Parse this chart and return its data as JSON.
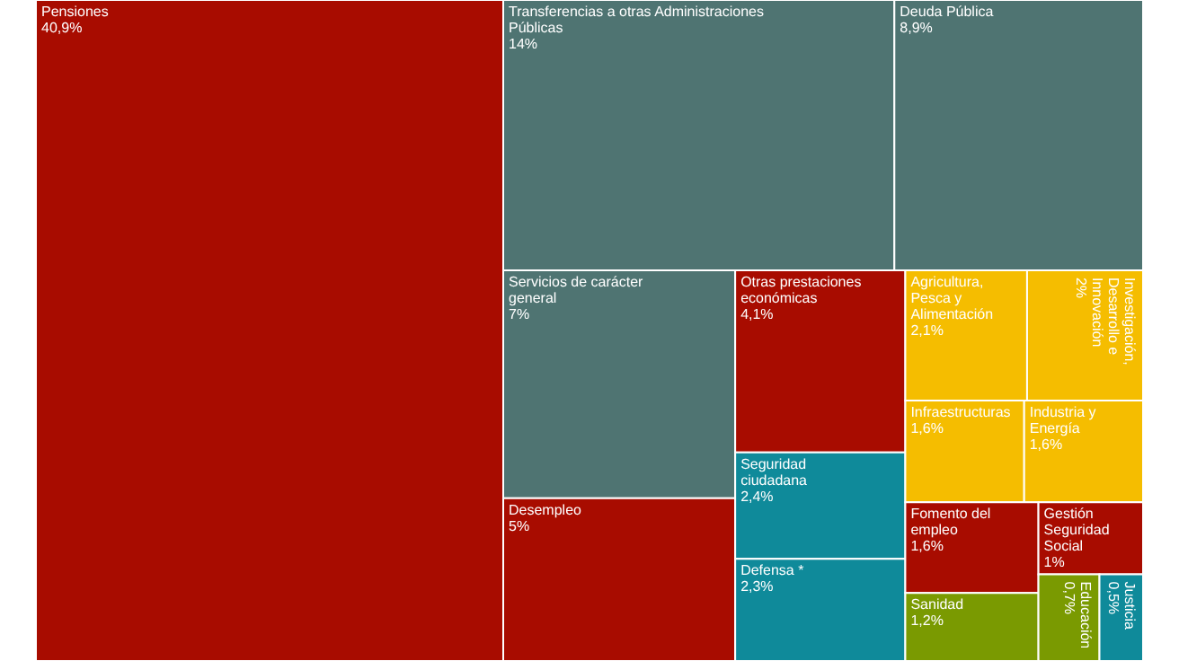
{
  "chart_data": {
    "type": "other",
    "categories": [
      "Pensiones",
      "Transferencias a otras Administraciones Públicas",
      "Deuda Pública",
      "Servicios de carácter general",
      "Desempleo",
      "Otras prestaciones económicas",
      "Seguridad ciudadana",
      "Defensa *",
      "Agricultura, Pesca y Alimentación",
      "Investigación, Desarrollo e Innovación",
      "Infraestructuras",
      "Industria y Energía",
      "Fomento del empleo",
      "Sanidad",
      "Gestión Seguridad Social",
      "Educación",
      "Justicia"
    ],
    "values": [
      40.9,
      14,
      8.9,
      7,
      5,
      4.1,
      2.4,
      2.3,
      2.1,
      2,
      1.6,
      1.6,
      1.6,
      1.2,
      1,
      0.7,
      0.5
    ],
    "value_labels": [
      "40,9%",
      "14%",
      "8,9%",
      "7%",
      "5%",
      "4,1%",
      "2,4%",
      "2,3%",
      "2,1%",
      "2%",
      "1,6%",
      "1,6%",
      "1,6%",
      "1,2%",
      "1%",
      "0,7%",
      "0,5%"
    ],
    "colors": [
      "#a80c00",
      "#4f7472",
      "#4f7472",
      "#4f7472",
      "#a80c00",
      "#a80c00",
      "#0f8a9a",
      "#0f8a9a",
      "#f5bd00",
      "#f5bd00",
      "#f5bd00",
      "#f5bd00",
      "#a80c00",
      "#7a9a01",
      "#a80c00",
      "#7a9a01",
      "#0f8a9a"
    ]
  }
}
